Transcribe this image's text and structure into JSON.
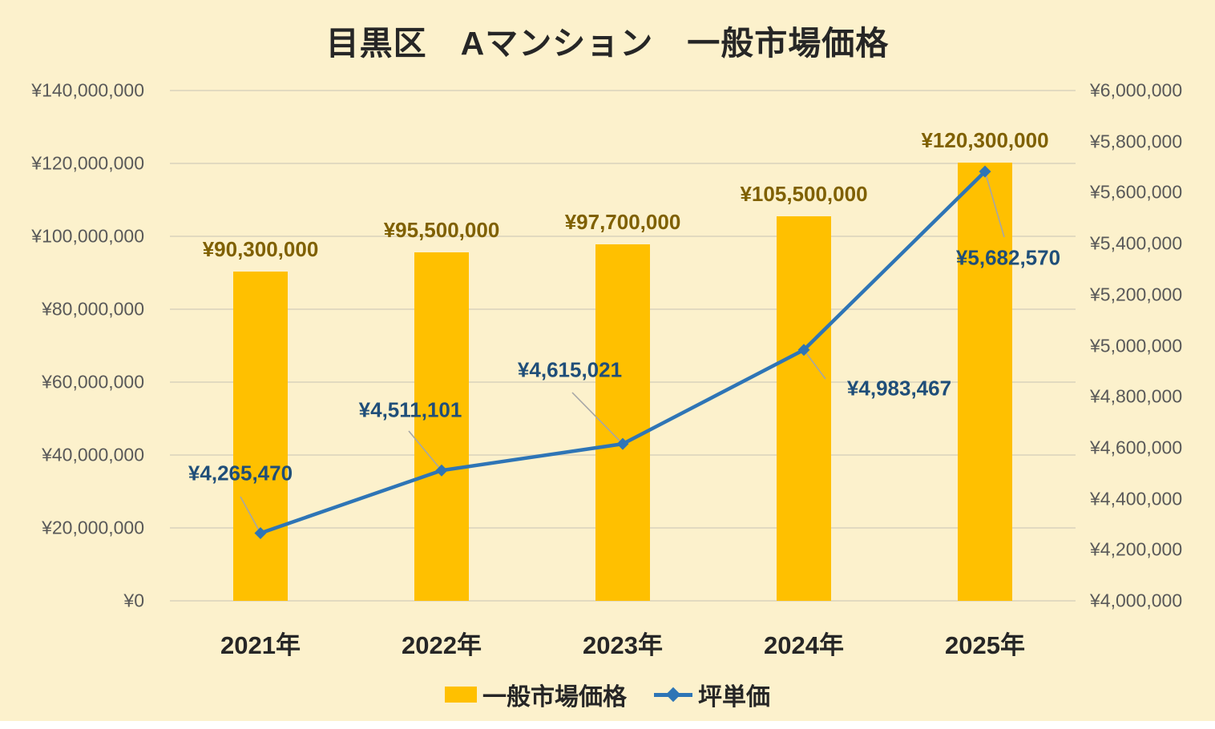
{
  "title": "目黒区　Aマンション　一般市場価格",
  "colors": {
    "background": "#FCF1CC",
    "bar": "#FFC000",
    "line": "#2E75B6",
    "bar_label": "#7F6000",
    "line_label": "#1F4E79",
    "axis_text": "#595959",
    "title_text": "#262626",
    "category_text": "#262626",
    "gridline": "#E2DAC0",
    "leader_line": "#A6A6A6"
  },
  "chart_data": {
    "type": "combo-bar-line",
    "title": "目黒区　Aマンション　一般市場価格",
    "categories": [
      "2021年",
      "2022年",
      "2023年",
      "2024年",
      "2025年"
    ],
    "series": [
      {
        "name": "一般市場価格",
        "type": "bar",
        "axis": "left",
        "values": [
          90300000,
          95500000,
          97700000,
          105500000,
          120300000
        ],
        "labels": [
          "¥90,300,000",
          "¥95,500,000",
          "¥97,700,000",
          "¥105,500,000",
          "¥120,300,000"
        ]
      },
      {
        "name": "坪単価",
        "type": "line",
        "axis": "right",
        "values": [
          4265470,
          4511101,
          4615021,
          4983467,
          5682570
        ],
        "labels": [
          "¥4,265,470",
          "¥4,511,101",
          "¥4,615,021",
          "¥4,983,467",
          "¥5,682,570"
        ]
      }
    ],
    "left_axis": {
      "min": 0,
      "max": 140000000,
      "step": 20000000,
      "tick_labels": [
        "¥140,000,000",
        "¥120,000,000",
        "¥100,000,000",
        "¥80,000,000",
        "¥60,000,000",
        "¥40,000,000",
        "¥20,000,000",
        "¥0"
      ]
    },
    "right_axis": {
      "min": 4000000,
      "max": 6000000,
      "step": 200000,
      "tick_labels": [
        "¥6,000,000",
        "¥5,800,000",
        "¥5,600,000",
        "¥5,400,000",
        "¥5,200,000",
        "¥5,000,000",
        "¥4,800,000",
        "¥4,600,000",
        "¥4,400,000",
        "¥4,200,000",
        "¥4,000,000"
      ]
    },
    "legend": {
      "position": "bottom",
      "items": [
        "一般市場価格",
        "坪単価"
      ]
    },
    "grid": true
  }
}
